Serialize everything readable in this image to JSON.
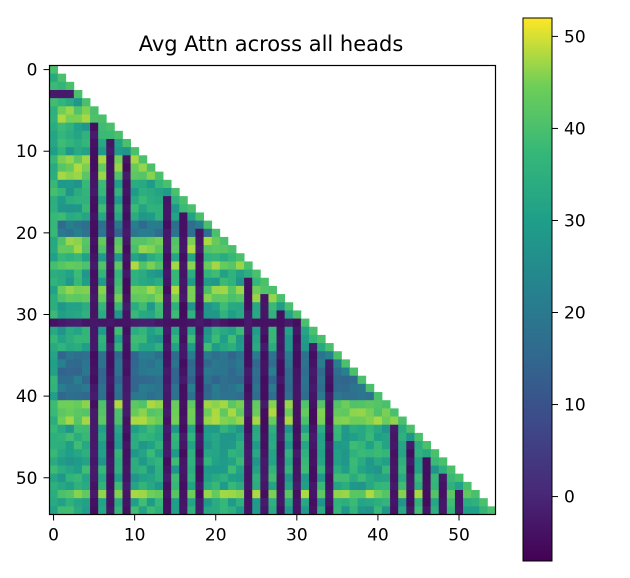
{
  "chart_data": {
    "type": "heatmap",
    "title": "Avg Attn across all heads",
    "shape": "lower-triangular",
    "n": 55,
    "colormap": "viridis",
    "xlim": [
      -0.5,
      54.5
    ],
    "ylim": [
      54.5,
      -0.5
    ],
    "x_ticks": [
      0,
      10,
      20,
      30,
      40,
      50
    ],
    "y_ticks": [
      0,
      10,
      20,
      30,
      40,
      50
    ],
    "colorbar": {
      "vmin": -7,
      "vmax": 52,
      "ticks": [
        0,
        10,
        20,
        30,
        40,
        50
      ]
    },
    "dark_columns": [
      5,
      7,
      9,
      14,
      16,
      18,
      24,
      26,
      28,
      30,
      32,
      34,
      42,
      44,
      46,
      48,
      50
    ],
    "row_bands": {
      "dark_rows": [
        3,
        31
      ],
      "low_rows": [
        19,
        20,
        35,
        36,
        37,
        38,
        39,
        40
      ],
      "high_rows": [
        5,
        6,
        11,
        12,
        13,
        21,
        22,
        24,
        27,
        28,
        41,
        42,
        43,
        52
      ]
    },
    "value_levels": {
      "dark_cell": -5,
      "low_band": 18,
      "typical": 33,
      "bright": 44
    },
    "diagonal_value": 40
  }
}
